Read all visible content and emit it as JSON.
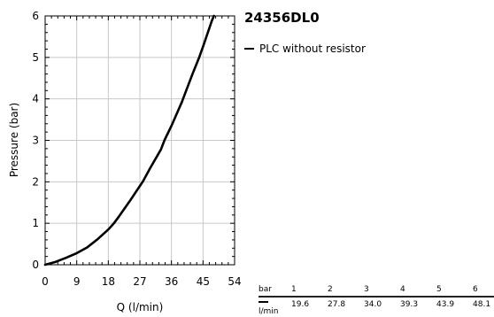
{
  "chart_data": {
    "type": "line",
    "title": "24356DL0",
    "xlabel": "Q (l/min)",
    "ylabel": "Pressure (bar)",
    "xlim": [
      0,
      54
    ],
    "ylim": [
      0,
      6
    ],
    "x_ticks": [
      "0",
      "9",
      "18",
      "27",
      "36",
      "45",
      "54"
    ],
    "y_ticks": [
      "0",
      "1",
      "2",
      "3",
      "4",
      "5",
      "6"
    ],
    "grid": true,
    "legend_position": "right",
    "series": [
      {
        "name": "PLC without resistor",
        "color": "#000000",
        "x": [
          0,
          3,
          6,
          9,
          12,
          15,
          18,
          19.6,
          21,
          24,
          27,
          27.8,
          30,
          33,
          34.0,
          36,
          39,
          39.3,
          42,
          43.9,
          45,
          47.5,
          48.1
        ],
        "y": [
          0,
          0.07,
          0.17,
          0.28,
          0.42,
          0.62,
          0.85,
          1.0,
          1.16,
          1.52,
          1.9,
          2.0,
          2.34,
          2.78,
          3.0,
          3.35,
          3.93,
          4.0,
          4.6,
          5.0,
          5.26,
          5.88,
          6.0
        ]
      }
    ],
    "table": {
      "header_label": "bar",
      "unit_label": "l/min",
      "pressures": [
        "1",
        "2",
        "3",
        "4",
        "5",
        "6"
      ],
      "flows": [
        "19.6",
        "27.8",
        "34.0",
        "39.3",
        "43.9",
        "48.1"
      ]
    }
  }
}
